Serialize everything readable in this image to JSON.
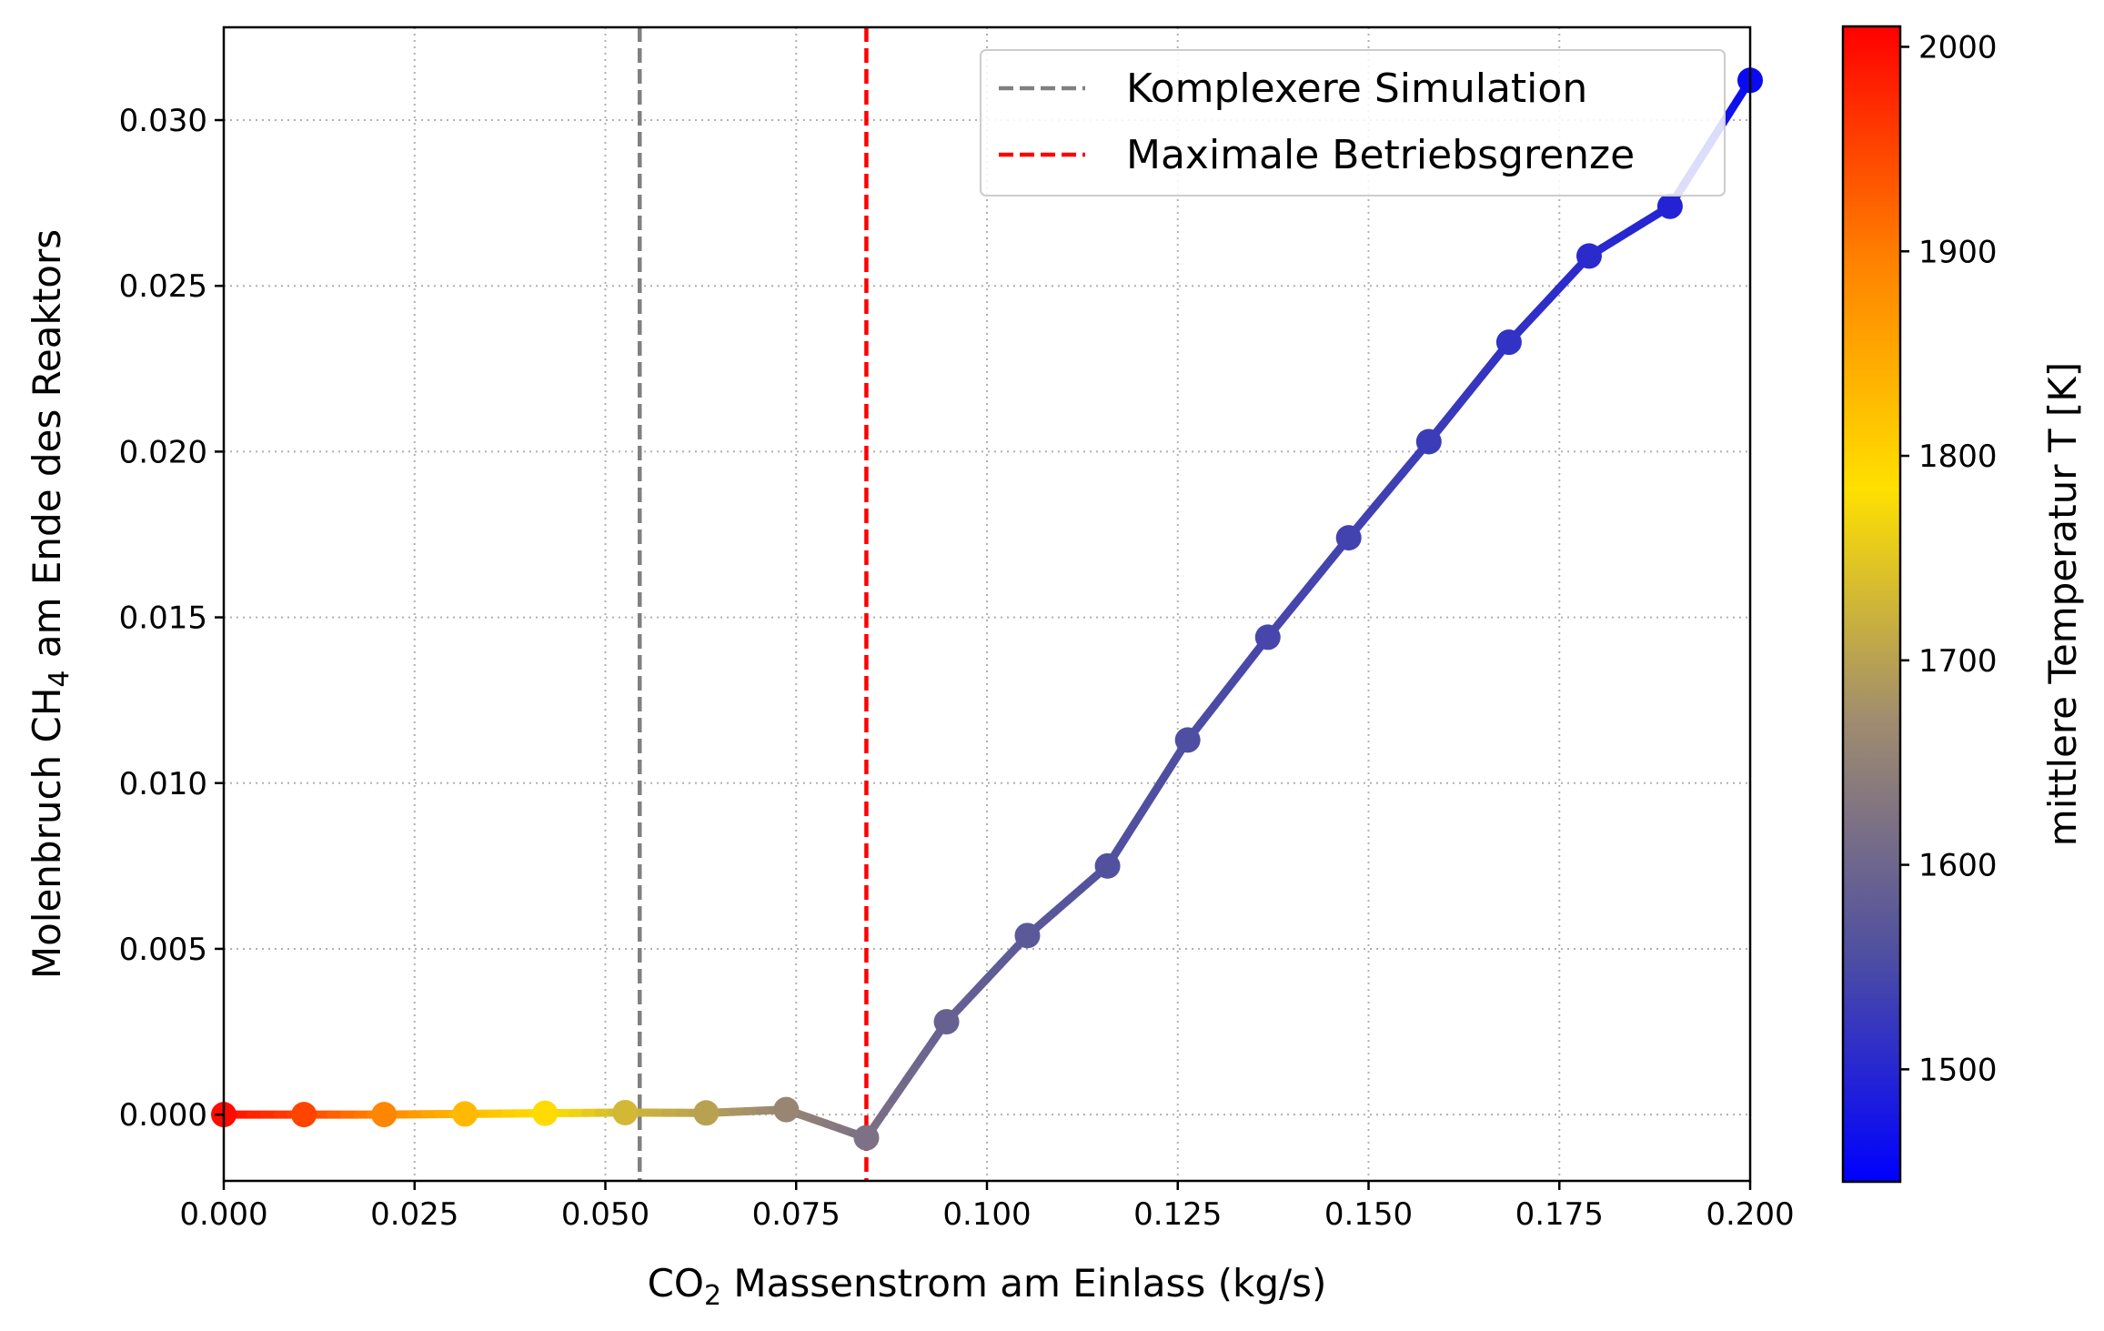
{
  "chart_data": {
    "type": "line",
    "xlabel": {
      "pre": "CO",
      "sub": "2",
      "post": " Massenstrom am Einlass (kg/s)"
    },
    "ylabel": {
      "pre": "Molenbruch CH",
      "sub": "4",
      "post": " am Ende des Reaktors"
    },
    "xlim": [
      0.0,
      0.2
    ],
    "ylim": [
      -0.002,
      0.0328
    ],
    "x_ticks": [
      "0.000",
      "0.025",
      "0.050",
      "0.075",
      "0.100",
      "0.125",
      "0.150",
      "0.175",
      "0.200"
    ],
    "x_tick_values": [
      0.0,
      0.025,
      0.05,
      0.075,
      0.1,
      0.125,
      0.15,
      0.175,
      0.2
    ],
    "y_ticks": [
      "0.000",
      "0.005",
      "0.010",
      "0.015",
      "0.020",
      "0.025",
      "0.030"
    ],
    "y_tick_values": [
      0.0,
      0.005,
      0.01,
      0.015,
      0.02,
      0.025,
      0.03
    ],
    "grid": true,
    "legend_position": "top-right",
    "series": [
      {
        "points": [
          {
            "x": 0.0,
            "y": 0.0,
            "T": 2000
          },
          {
            "x": 0.0105,
            "y": 0.0,
            "T": 1950
          },
          {
            "x": 0.021,
            "y": 0.0,
            "T": 1890
          },
          {
            "x": 0.0316,
            "y": 2e-05,
            "T": 1830
          },
          {
            "x": 0.0421,
            "y": 4e-05,
            "T": 1790
          },
          {
            "x": 0.0526,
            "y": 6e-05,
            "T": 1730
          },
          {
            "x": 0.0632,
            "y": 5e-05,
            "T": 1700
          },
          {
            "x": 0.0737,
            "y": 0.00015,
            "T": 1660
          },
          {
            "x": 0.0842,
            "y": -0.0007,
            "T": 1620
          },
          {
            "x": 0.0947,
            "y": 0.0028,
            "T": 1590
          },
          {
            "x": 0.1053,
            "y": 0.0054,
            "T": 1575
          },
          {
            "x": 0.1158,
            "y": 0.0075,
            "T": 1560
          },
          {
            "x": 0.1263,
            "y": 0.0113,
            "T": 1555
          },
          {
            "x": 0.1368,
            "y": 0.0144,
            "T": 1545
          },
          {
            "x": 0.1474,
            "y": 0.0174,
            "T": 1540
          },
          {
            "x": 0.1579,
            "y": 0.0203,
            "T": 1530
          },
          {
            "x": 0.1684,
            "y": 0.0233,
            "T": 1515
          },
          {
            "x": 0.1789,
            "y": 0.0259,
            "T": 1505
          },
          {
            "x": 0.1895,
            "y": 0.0274,
            "T": 1495
          },
          {
            "x": 0.2,
            "y": 0.0312,
            "T": 1460
          }
        ]
      }
    ],
    "reference_lines": [
      {
        "label": "Komplexere Simulation",
        "x": 0.0545,
        "color": "#808080"
      },
      {
        "label": "Maximale Betriebsgrenze",
        "x": 0.0842,
        "color": "#ff0000"
      }
    ],
    "colorbar": {
      "label": "mittlere Temperatur T [K]",
      "min": 1445,
      "max": 2010,
      "ticks": [
        "1500",
        "1600",
        "1700",
        "1800",
        "1900",
        "2000"
      ],
      "tick_values": [
        1500,
        1600,
        1700,
        1800,
        1900,
        2000
      ],
      "colors": [
        "#0000ff",
        "#5050a0",
        "#a08c6e",
        "#ffe000",
        "#ff8000",
        "#ff0000"
      ]
    }
  }
}
